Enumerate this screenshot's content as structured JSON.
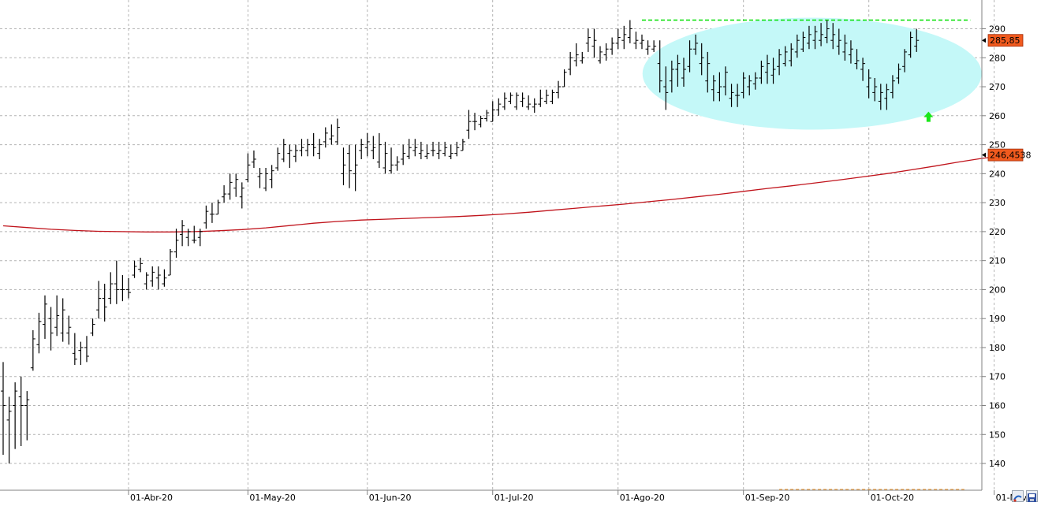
{
  "chart_data": {
    "type": "ohlc",
    "ylim": [
      132,
      296
    ],
    "y_ticks": [
      140,
      150,
      160,
      170,
      180,
      190,
      200,
      210,
      220,
      230,
      240,
      250,
      260,
      270,
      280,
      290
    ],
    "x_ticks": [
      {
        "label": "01-Abr-20",
        "index": 21
      },
      {
        "label": "01-May-20",
        "index": 41
      },
      {
        "label": "01-Jun-20",
        "index": 61
      },
      {
        "label": "01-Jul-20",
        "index": 82
      },
      {
        "label": "01-Ago-20",
        "index": 103
      },
      {
        "label": "01-Sep-20",
        "index": 124
      },
      {
        "label": "01-Oct-20",
        "index": 145
      },
      {
        "label": "01-Nov",
        "index": 166
      }
    ],
    "grid": true,
    "colors": {
      "bars": "#000000",
      "moving_average": "#c0141c",
      "resistance": "#00e000",
      "support": "#f0a040",
      "pattern_zone": "#c4f8f8",
      "arrow": "#19e619",
      "tag": "#f05a1e"
    },
    "last_price_tag": "285,85",
    "moving_average_tag": "246,4538",
    "resistance_level": 293,
    "support_level": 131,
    "arrow_direction": "up",
    "series": [
      {
        "type": "ohlc",
        "values": [
          [
            165,
            175,
            143,
            160
          ],
          [
            155,
            163,
            140,
            158
          ],
          [
            160,
            168,
            145,
            165
          ],
          [
            163,
            170,
            146,
            160
          ],
          [
            160,
            165,
            148,
            162
          ],
          [
            173,
            186,
            172,
            183
          ],
          [
            181,
            192,
            178,
            189
          ],
          [
            188,
            198,
            183,
            195
          ],
          [
            190,
            194,
            179,
            185
          ],
          [
            187,
            198,
            184,
            191
          ],
          [
            185,
            197,
            182,
            193
          ],
          [
            185,
            191,
            181,
            187
          ],
          [
            178,
            185,
            174,
            176
          ],
          [
            179,
            182,
            174,
            180
          ],
          [
            180,
            184,
            175,
            177
          ],
          [
            185,
            190,
            184,
            188
          ],
          [
            193,
            203,
            190,
            197
          ],
          [
            197,
            202,
            189,
            194
          ],
          [
            197,
            206,
            195,
            202
          ],
          [
            202,
            210,
            195,
            200
          ],
          [
            200,
            205,
            196,
            200
          ],
          [
            200,
            204,
            197,
            199
          ],
          [
            205,
            210,
            204,
            208
          ],
          [
            207,
            211,
            206,
            209
          ],
          [
            202,
            206,
            200,
            205
          ],
          [
            203,
            208,
            201,
            206
          ],
          [
            204,
            208,
            200,
            205
          ],
          [
            202,
            207,
            201,
            204
          ],
          [
            205,
            214,
            205,
            213
          ],
          [
            213,
            221,
            211,
            217
          ],
          [
            219,
            224,
            215,
            222
          ],
          [
            218,
            221,
            215,
            220
          ],
          [
            217,
            222,
            216,
            217
          ],
          [
            218,
            221,
            215,
            220
          ],
          [
            223,
            229,
            221,
            227
          ],
          [
            226,
            230,
            223,
            226
          ],
          [
            226,
            231,
            226,
            230
          ],
          [
            232,
            236,
            230,
            233
          ],
          [
            233,
            240,
            231,
            237
          ],
          [
            235,
            240,
            232,
            238
          ],
          [
            232,
            237,
            228,
            235
          ],
          [
            238,
            247,
            237,
            243
          ],
          [
            244,
            248,
            242,
            245
          ],
          [
            239,
            242,
            235,
            240
          ],
          [
            235,
            242,
            234,
            240
          ],
          [
            238,
            243,
            235,
            241
          ],
          [
            242,
            249,
            241,
            247
          ],
          [
            245,
            252,
            244,
            250
          ],
          [
            247,
            250,
            242,
            248
          ],
          [
            246,
            250,
            244,
            248
          ],
          [
            248,
            252,
            246,
            249
          ],
          [
            248,
            252,
            246,
            250
          ],
          [
            250,
            254,
            246,
            249
          ],
          [
            247,
            252,
            245,
            250
          ],
          [
            251,
            256,
            249,
            254
          ],
          [
            252,
            257,
            250,
            253
          ],
          [
            251,
            259,
            250,
            256
          ],
          [
            240,
            249,
            236,
            243
          ],
          [
            247,
            250,
            235,
            241
          ],
          [
            240,
            250,
            234,
            243
          ],
          [
            248,
            252,
            245,
            250
          ],
          [
            249,
            254,
            246,
            251
          ],
          [
            248,
            253,
            245,
            249
          ],
          [
            244,
            254,
            242,
            250
          ],
          [
            242,
            251,
            240,
            247
          ],
          [
            241,
            249,
            240,
            243
          ],
          [
            243,
            246,
            241,
            244
          ],
          [
            245,
            250,
            243,
            247
          ],
          [
            246,
            252,
            245,
            249
          ],
          [
            248,
            252,
            246,
            249
          ],
          [
            247,
            251,
            245,
            248
          ],
          [
            246,
            250,
            245,
            247
          ],
          [
            248,
            251,
            246,
            248
          ],
          [
            247,
            251,
            245,
            248
          ],
          [
            247,
            251,
            246,
            249
          ],
          [
            246,
            250,
            245,
            247
          ],
          [
            247,
            251,
            246,
            249
          ],
          [
            248,
            252,
            248,
            251
          ],
          [
            255,
            262,
            252,
            258
          ],
          [
            258,
            261,
            255,
            258
          ],
          [
            257,
            260,
            256,
            259
          ],
          [
            259,
            262,
            258,
            261
          ],
          [
            258,
            265,
            258,
            262
          ],
          [
            262,
            266,
            260,
            264
          ],
          [
            263,
            268,
            262,
            266
          ],
          [
            265,
            268,
            264,
            267
          ],
          [
            263,
            268,
            262,
            267
          ],
          [
            265,
            268,
            263,
            266
          ],
          [
            263,
            267,
            262,
            264
          ],
          [
            263,
            266,
            261,
            264
          ],
          [
            264,
            269,
            263,
            266
          ],
          [
            265,
            269,
            264,
            267
          ],
          [
            265,
            269,
            264,
            268
          ],
          [
            268,
            272,
            266,
            270
          ],
          [
            270,
            276,
            270,
            275
          ],
          [
            276,
            282,
            274,
            280
          ],
          [
            279,
            285,
            277,
            281
          ],
          [
            279,
            282,
            278,
            280
          ],
          [
            285,
            290,
            282,
            287
          ],
          [
            284,
            290,
            280,
            286
          ],
          [
            279,
            284,
            278,
            282
          ],
          [
            281,
            285,
            279,
            283
          ],
          [
            283,
            287,
            281,
            285
          ],
          [
            285,
            290,
            283,
            287
          ],
          [
            286,
            291,
            283,
            288
          ],
          [
            287,
            293,
            285,
            290
          ],
          [
            285,
            289,
            283,
            286
          ],
          [
            285,
            288,
            283,
            286
          ],
          [
            283,
            286,
            281,
            284
          ],
          [
            283,
            286,
            282,
            284
          ],
          [
            278,
            286,
            268,
            272
          ],
          [
            270,
            277,
            262,
            268
          ],
          [
            272,
            279,
            268,
            276
          ],
          [
            276,
            281,
            270,
            278
          ],
          [
            273,
            280,
            270,
            276
          ],
          [
            277,
            286,
            275,
            283
          ],
          [
            283,
            288,
            281,
            285
          ],
          [
            278,
            285,
            274,
            280
          ],
          [
            272,
            282,
            268,
            278
          ],
          [
            269,
            274,
            265,
            272
          ],
          [
            268,
            275,
            265,
            270
          ],
          [
            270,
            277,
            267,
            275
          ],
          [
            266,
            271,
            263,
            268
          ],
          [
            267,
            271,
            263,
            267
          ],
          [
            268,
            275,
            266,
            273
          ],
          [
            270,
            274,
            267,
            272
          ],
          [
            271,
            275,
            269,
            273
          ],
          [
            273,
            279,
            271,
            277
          ],
          [
            275,
            281,
            271,
            278
          ],
          [
            274,
            280,
            271,
            276
          ],
          [
            277,
            283,
            274,
            281
          ],
          [
            278,
            284,
            277,
            282
          ],
          [
            279,
            285,
            277,
            283
          ],
          [
            282,
            288,
            280,
            286
          ],
          [
            283,
            289,
            282,
            287
          ],
          [
            285,
            291,
            283,
            288
          ],
          [
            286,
            291,
            283,
            289
          ],
          [
            286,
            292,
            284,
            288
          ],
          [
            287,
            293,
            285,
            290
          ],
          [
            286,
            292,
            283,
            288
          ],
          [
            284,
            290,
            281,
            286
          ],
          [
            282,
            288,
            279,
            285
          ],
          [
            281,
            286,
            278,
            283
          ],
          [
            278,
            283,
            276,
            279
          ],
          [
            276,
            280,
            272,
            278
          ],
          [
            270,
            276,
            266,
            273
          ],
          [
            268,
            273,
            265,
            270
          ],
          [
            265,
            271,
            262,
            268
          ],
          [
            266,
            271,
            262,
            269
          ],
          [
            268,
            274,
            266,
            272
          ],
          [
            273,
            278,
            271,
            276
          ],
          [
            277,
            283,
            275,
            282
          ],
          [
            281,
            289,
            280,
            287
          ],
          [
            284,
            290,
            282,
            286
          ]
        ]
      },
      {
        "type": "line",
        "values": [
          [
            0,
            222
          ],
          [
            4,
            221.4
          ],
          [
            8,
            220.8
          ],
          [
            12,
            220.4
          ],
          [
            16,
            220.1
          ],
          [
            20,
            220
          ],
          [
            24,
            219.9
          ],
          [
            28,
            219.9
          ],
          [
            32,
            220
          ],
          [
            36,
            220.3
          ],
          [
            40,
            220.7
          ],
          [
            44,
            221.3
          ],
          [
            48,
            222.1
          ],
          [
            52,
            222.9
          ],
          [
            56,
            223.5
          ],
          [
            60,
            224
          ],
          [
            64,
            224.3
          ],
          [
            68,
            224.6
          ],
          [
            72,
            224.9
          ],
          [
            76,
            225.2
          ],
          [
            80,
            225.6
          ],
          [
            84,
            226.1
          ],
          [
            88,
            226.7
          ],
          [
            92,
            227.4
          ],
          [
            96,
            228.1
          ],
          [
            100,
            228.8
          ],
          [
            104,
            229.5
          ],
          [
            108,
            230.3
          ],
          [
            112,
            231.1
          ],
          [
            116,
            232
          ],
          [
            120,
            232.9
          ],
          [
            124,
            233.9
          ],
          [
            128,
            234.9
          ],
          [
            132,
            235.8
          ],
          [
            136,
            236.8
          ],
          [
            140,
            237.8
          ],
          [
            144,
            238.9
          ],
          [
            148,
            240
          ],
          [
            152,
            241.3
          ],
          [
            156,
            242.6
          ],
          [
            160,
            244
          ],
          [
            164,
            245.3
          ],
          [
            168,
            246.3
          ],
          [
            170,
            246.45
          ]
        ]
      }
    ]
  }
}
